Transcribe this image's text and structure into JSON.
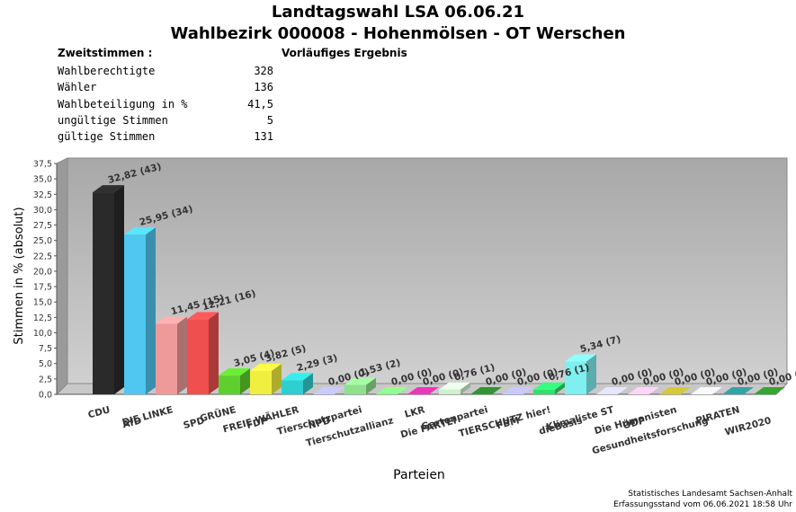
{
  "header": {
    "title": "Landtagswahl LSA 06.06.21",
    "subtitle": "Wahlbezirk 000008 - Hohenmölsen - OT Werschen",
    "section_label": "Zweitstimmen :",
    "status": "Vorläufiges Ergebnis"
  },
  "stats": [
    {
      "label": "Wahlberechtigte",
      "value": "328"
    },
    {
      "label": "Wähler",
      "value": "136"
    },
    {
      "label": "Wahlbeteiligung in %",
      "value": "41,5"
    },
    {
      "label": "ungültige Stimmen",
      "value": "5"
    },
    {
      "label": "gültige Stimmen",
      "value": "131"
    }
  ],
  "chart_data": {
    "type": "bar",
    "title": "",
    "xlabel": "Parteien",
    "ylabel": "Stimmen in % (absolut)",
    "ylim": [
      0,
      37.5
    ],
    "yticks": [
      "0,0",
      "2,5",
      "5,0",
      "7,5",
      "10,0",
      "12,5",
      "15,0",
      "17,5",
      "20,0",
      "22,5",
      "25,0",
      "27,5",
      "30,0",
      "32,5",
      "35,0",
      "37,5"
    ],
    "grid": false,
    "categories": [
      "CDU",
      "AfD",
      "DIE LINKE",
      "SPD",
      "GRÜNE",
      "FDP",
      "FREIE WÄHLER",
      "NPD",
      "Tierschutzpartei",
      "Tierschutzallianz",
      "LKR",
      "Die PARTEI",
      "Gartenpartei",
      "FBM",
      "TIERSCHUTZ hier!",
      "dieBasis",
      "Klimaliste ST",
      "ÖDP",
      "Die Humanisten",
      "Gesundheitsforschung",
      "PIRATEN",
      "WIR2020"
    ],
    "values": [
      32.82,
      25.95,
      11.45,
      12.21,
      3.05,
      3.82,
      2.29,
      0.0,
      1.53,
      0.0,
      0.0,
      0.76,
      0.0,
      0.0,
      0.76,
      5.34,
      0.0,
      0.0,
      0.0,
      0.0,
      0.0,
      0.0
    ],
    "value_labels": [
      "32,82 (43)",
      "25,95 (34)",
      "11,45 (15)",
      "12,21 (16)",
      "3,05 (4)",
      "3,82 (5)",
      "2,29 (3)",
      "0,00 (0)",
      "1,53 (2)",
      "0,00 (0)",
      "0,00 (0)",
      "0,76 (1)",
      "0,00 (0)",
      "0,00 (0)",
      "0,76 (1)",
      "5,34 (7)",
      "0,00 (0)",
      "0,00 (0)",
      "0,00 (0)",
      "0,00 (0)",
      "0,00 (0)",
      "0,00 (0)"
    ],
    "colors": [
      "#2a2a2a",
      "#4fc7f0",
      "#ef9a9a",
      "#ef4f4f",
      "#5fcf2f",
      "#f0ef3f",
      "#2fcfcf",
      "#b0b0ef",
      "#8fdf8f",
      "#7fef7f",
      "#cf2fa0",
      "#cfefcf",
      "#2f7f2f",
      "#afafef",
      "#2fdf6f",
      "#7fefef",
      "#c8c8f8",
      "#f8b8d8",
      "#b8b030",
      "#d8d8f8",
      "#2f8f8f",
      "#2f8f2f"
    ]
  },
  "footer": {
    "line1": "Statistisches Landesamt Sachsen-Anhalt",
    "line2": "Erfassungsstand vom 06.06.2021 18:58 Uhr"
  }
}
